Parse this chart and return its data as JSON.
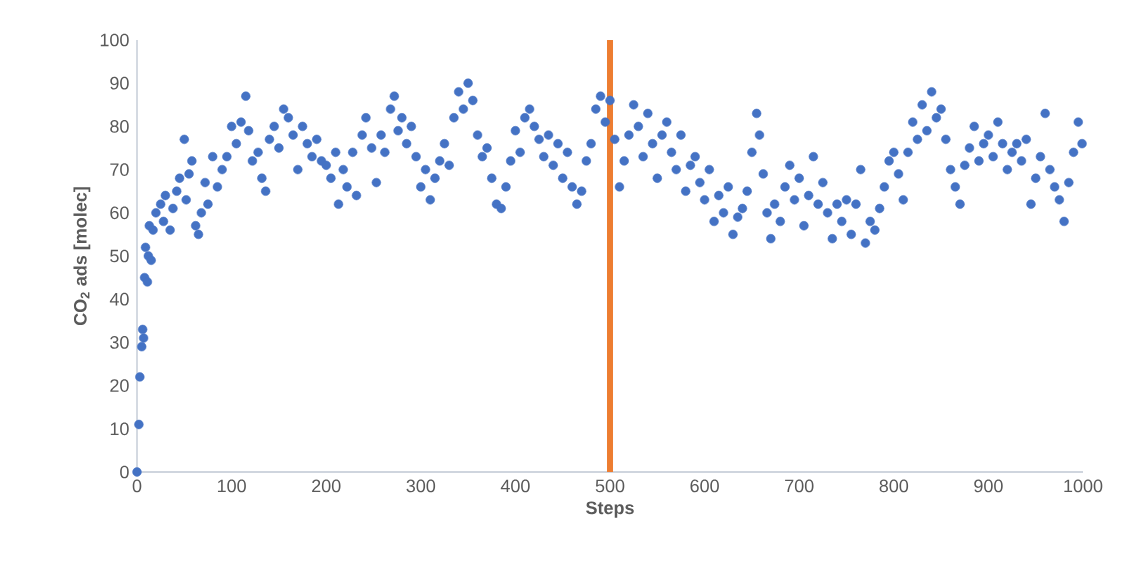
{
  "chart_data": {
    "type": "scatter",
    "xlabel": "Steps",
    "ylabel": "CO$_{2}$ ads [molec]",
    "xlim": [
      0,
      1000
    ],
    "ylim": [
      0,
      100
    ],
    "xticks": [
      0,
      100,
      200,
      300,
      400,
      500,
      600,
      700,
      800,
      900,
      1000
    ],
    "yticks": [
      0,
      10,
      20,
      30,
      40,
      50,
      60,
      70,
      80,
      90,
      100
    ],
    "ref_lines": [
      {
        "axis": "x",
        "value": 500,
        "color": "#ed7d31"
      }
    ],
    "series": [
      {
        "color": "#4472c4",
        "x": [
          0,
          2,
          3,
          5,
          6,
          7,
          8,
          9,
          11,
          12,
          13,
          15,
          17,
          20,
          25,
          28,
          30,
          35,
          38,
          42,
          45,
          50,
          52,
          55,
          58,
          62,
          65,
          68,
          72,
          75,
          80,
          85,
          90,
          95,
          100,
          105,
          110,
          115,
          118,
          122,
          128,
          132,
          136,
          140,
          145,
          150,
          155,
          160,
          165,
          170,
          175,
          180,
          185,
          190,
          195,
          200,
          205,
          210,
          213,
          218,
          222,
          228,
          232,
          238,
          242,
          248,
          253,
          258,
          262,
          268,
          272,
          276,
          280,
          285,
          290,
          295,
          300,
          305,
          310,
          315,
          320,
          325,
          330,
          335,
          340,
          345,
          350,
          355,
          360,
          365,
          370,
          375,
          380,
          385,
          390,
          395,
          400,
          405,
          410,
          415,
          420,
          425,
          430,
          435,
          440,
          445,
          450,
          455,
          460,
          465,
          470,
          475,
          480,
          485,
          490,
          495,
          500,
          505,
          510,
          515,
          520,
          525,
          530,
          535,
          540,
          545,
          550,
          555,
          560,
          565,
          570,
          575,
          580,
          585,
          590,
          595,
          600,
          605,
          610,
          615,
          620,
          625,
          630,
          635,
          640,
          645,
          650,
          655,
          658,
          662,
          666,
          670,
          674,
          680,
          685,
          690,
          695,
          700,
          705,
          710,
          715,
          720,
          725,
          730,
          735,
          740,
          745,
          750,
          755,
          760,
          765,
          770,
          775,
          780,
          785,
          790,
          795,
          800,
          805,
          810,
          815,
          820,
          825,
          830,
          835,
          840,
          845,
          850,
          855,
          860,
          865,
          870,
          875,
          880,
          885,
          890,
          895,
          900,
          905,
          910,
          915,
          920,
          925,
          930,
          935,
          940,
          945,
          950,
          955,
          960,
          965,
          970,
          975,
          980,
          985,
          990,
          995,
          999
        ],
        "values": [
          0,
          11,
          22,
          29,
          33,
          31,
          45,
          52,
          44,
          50,
          57,
          49,
          56,
          60,
          62,
          58,
          64,
          56,
          61,
          65,
          68,
          77,
          63,
          69,
          72,
          57,
          55,
          60,
          67,
          62,
          73,
          66,
          70,
          73,
          80,
          76,
          81,
          87,
          79,
          72,
          74,
          68,
          65,
          77,
          80,
          75,
          84,
          82,
          78,
          70,
          80,
          76,
          73,
          77,
          72,
          71,
          68,
          74,
          62,
          70,
          66,
          74,
          64,
          78,
          82,
          75,
          67,
          78,
          74,
          84,
          87,
          79,
          82,
          76,
          80,
          73,
          66,
          70,
          63,
          68,
          72,
          76,
          71,
          82,
          88,
          84,
          90,
          86,
          78,
          73,
          75,
          68,
          62,
          61,
          66,
          72,
          79,
          74,
          82,
          84,
          80,
          77,
          73,
          78,
          71,
          76,
          68,
          74,
          66,
          62,
          65,
          72,
          76,
          84,
          87,
          81,
          86,
          77,
          66,
          72,
          78,
          85,
          80,
          73,
          83,
          76,
          68,
          78,
          81,
          74,
          70,
          78,
          65,
          71,
          73,
          67,
          63,
          70,
          58,
          64,
          60,
          66,
          55,
          59,
          61,
          65,
          74,
          83,
          78,
          69,
          60,
          54,
          62,
          58,
          66,
          71,
          63,
          68,
          57,
          64,
          73,
          62,
          67,
          60,
          54,
          62,
          58,
          63,
          55,
          62,
          70,
          53,
          58,
          56,
          61,
          66,
          72,
          74,
          69,
          63,
          74,
          81,
          77,
          85,
          79,
          88,
          82,
          84,
          77,
          70,
          66,
          62,
          71,
          75,
          80,
          72,
          76,
          78,
          73,
          81,
          76,
          70,
          74,
          76,
          72,
          77,
          62,
          68,
          73,
          83,
          70,
          66,
          63,
          58,
          67,
          74,
          81,
          76
        ]
      }
    ]
  }
}
